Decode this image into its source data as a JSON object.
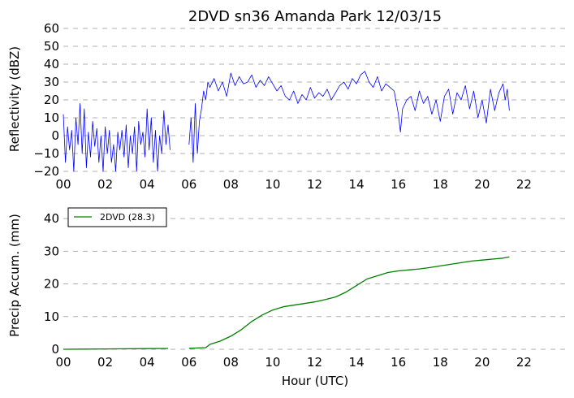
{
  "chart_data": [
    {
      "type": "line",
      "title": "2DVD sn36 Amanda Park 12/03/15",
      "xlabel": "",
      "ylabel": "Reflectivity (dBZ)",
      "xlim": [
        0,
        24
      ],
      "ylim": [
        -20,
        60
      ],
      "xticks": [
        "00",
        "02",
        "04",
        "06",
        "08",
        "10",
        "12",
        "14",
        "16",
        "18",
        "20",
        "22"
      ],
      "yticks": [
        "−20",
        "−10",
        "0",
        "10",
        "20",
        "30",
        "40",
        "50",
        "60"
      ],
      "grid": "horizontal dashed",
      "color": "#0000ff",
      "series": [
        {
          "x": [
            0.0,
            0.1,
            0.2,
            0.3,
            0.4,
            0.5,
            0.6,
            0.7,
            0.8,
            0.9,
            1.0,
            1.1,
            1.2,
            1.3,
            1.4,
            1.5,
            1.6,
            1.7,
            1.8,
            1.9,
            2.0,
            2.1,
            2.2,
            2.3,
            2.4,
            2.5,
            2.6,
            2.7,
            2.8,
            2.9,
            3.0,
            3.1,
            3.2,
            3.3,
            3.4,
            3.5,
            3.6,
            3.7,
            3.8,
            3.9,
            4.0,
            4.1,
            4.2,
            4.3,
            4.4,
            4.5,
            4.6,
            4.7,
            4.8,
            4.9,
            5.0,
            5.1,
            null,
            6.0,
            6.1,
            6.2,
            6.3,
            6.4,
            6.5,
            6.6,
            6.7,
            6.8,
            6.9,
            7.0,
            7.2,
            7.4,
            7.6,
            7.8,
            8.0,
            8.2,
            8.4,
            8.6,
            8.8,
            9.0,
            9.2,
            9.4,
            9.6,
            9.8,
            10.0,
            10.2,
            10.4,
            10.6,
            10.8,
            11.0,
            11.2,
            11.4,
            11.6,
            11.8,
            12.0,
            12.2,
            12.4,
            12.6,
            12.8,
            13.0,
            13.2,
            13.4,
            13.6,
            13.8,
            14.0,
            14.2,
            14.4,
            14.6,
            14.8,
            15.0,
            15.2,
            15.4,
            15.6,
            15.8,
            16.0,
            16.1,
            16.2,
            16.4,
            16.6,
            16.8,
            17.0,
            17.2,
            17.4,
            17.6,
            17.8,
            18.0,
            18.2,
            18.4,
            18.6,
            18.8,
            19.0,
            19.2,
            19.4,
            19.6,
            19.8,
            20.0,
            20.2,
            20.4,
            20.6,
            20.8,
            21.0,
            21.1,
            21.2,
            21.3
          ],
          "y": [
            12,
            -15,
            5,
            -8,
            3,
            -20,
            10,
            -5,
            18,
            -10,
            15,
            -18,
            2,
            -12,
            8,
            -6,
            4,
            -15,
            0,
            -20,
            5,
            -10,
            3,
            -15,
            -5,
            -20,
            2,
            -8,
            3,
            -12,
            6,
            -18,
            0,
            -10,
            5,
            -20,
            8,
            -5,
            2,
            -12,
            15,
            -8,
            10,
            -15,
            3,
            -20,
            0,
            -10,
            14,
            -5,
            6,
            -8,
            null,
            -5,
            10,
            -15,
            18,
            -10,
            8,
            15,
            25,
            20,
            30,
            27,
            32,
            25,
            30,
            22,
            35,
            28,
            33,
            29,
            30,
            34,
            27,
            31,
            28,
            33,
            29,
            25,
            28,
            22,
            20,
            25,
            18,
            23,
            20,
            27,
            21,
            24,
            22,
            26,
            20,
            24,
            28,
            30,
            26,
            32,
            29,
            34,
            36,
            30,
            27,
            33,
            25,
            29,
            27,
            25,
            12,
            2,
            15,
            20,
            22,
            14,
            25,
            18,
            22,
            12,
            20,
            8,
            22,
            26,
            12,
            24,
            20,
            28,
            15,
            25,
            10,
            20,
            7,
            26,
            14,
            24,
            29,
            20,
            26,
            14
          ]
        }
      ]
    },
    {
      "type": "line",
      "xlabel": "Hour (UTC)",
      "ylabel": "Precip Accum. (mm)",
      "xlim": [
        0,
        24
      ],
      "ylim": [
        0,
        45
      ],
      "xticks": [
        "00",
        "02",
        "04",
        "06",
        "08",
        "10",
        "12",
        "14",
        "16",
        "18",
        "20",
        "22"
      ],
      "yticks": [
        "0",
        "10",
        "20",
        "30",
        "40"
      ],
      "grid": "horizontal dashed",
      "legend_position": "top-left",
      "color": "#008000",
      "series": [
        {
          "name": "2DVD (28.3)",
          "x": [
            0.0,
            1.0,
            2.0,
            3.0,
            4.0,
            5.0,
            null,
            6.0,
            6.8,
            7.0,
            7.5,
            8.0,
            8.5,
            9.0,
            9.5,
            10.0,
            10.5,
            11.0,
            11.5,
            12.0,
            12.5,
            13.0,
            13.5,
            14.0,
            14.5,
            15.0,
            15.5,
            16.0,
            16.5,
            17.0,
            17.5,
            18.0,
            18.5,
            19.0,
            19.5,
            20.0,
            20.5,
            21.0,
            21.3
          ],
          "y": [
            0,
            0.05,
            0.1,
            0.15,
            0.2,
            0.25,
            null,
            0.3,
            0.5,
            1.5,
            2.5,
            4,
            6,
            8.5,
            10.5,
            12,
            13,
            13.5,
            14,
            14.5,
            15.2,
            16,
            17.5,
            19.5,
            21.5,
            22.5,
            23.5,
            24,
            24.3,
            24.6,
            25,
            25.5,
            26,
            26.5,
            27,
            27.3,
            27.6,
            27.9,
            28.3
          ]
        }
      ]
    }
  ]
}
